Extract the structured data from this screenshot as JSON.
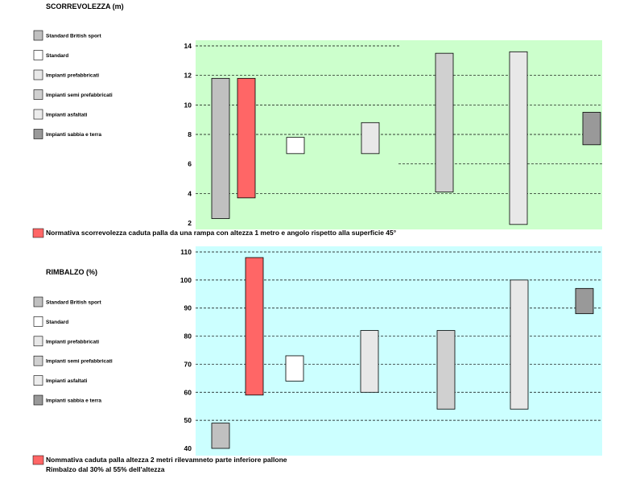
{
  "colors": {
    "panel1_bg": "#ccffcc",
    "panel2_bg": "#ccffff",
    "standard_british_sport": "#c0c0c0",
    "standard": "#ffffff",
    "prefabricated": "#e8e8e8",
    "semi_prefabricated": "#d0d0d0",
    "asphalt": "#ececec",
    "sand_earth": "#999999",
    "norm": "#ff6666"
  },
  "chart_data": [
    {
      "type": "bar",
      "title": "SCORREVOLEZZA (m)",
      "ylim": [
        2,
        14
      ],
      "yticks": [
        2,
        4,
        6,
        8,
        10,
        12,
        14
      ],
      "grid": true,
      "legend": [
        {
          "label": "Standard British sport",
          "color": "#c0c0c0"
        },
        {
          "label": "Standard",
          "color": "#ffffff"
        },
        {
          "label": "Impianti prefabbricati",
          "color": "#e8e8e8"
        },
        {
          "label": "Impianti semi prefabbricati",
          "color": "#d0d0d0"
        },
        {
          "label": "Impianti asfaltati",
          "color": "#ececec"
        },
        {
          "label": "Impianti sabbia e terra",
          "color": "#999999"
        }
      ],
      "series": [
        {
          "color": "#c0c0c0",
          "low": 2.3,
          "high": 11.8
        },
        {
          "color": "#ff6666",
          "low": 3.7,
          "high": 11.8
        },
        {
          "color": "#ffffff",
          "low": 6.7,
          "high": 7.8
        },
        {
          "color": "#e8e8e8",
          "low": 6.7,
          "high": 8.8
        },
        {
          "color": "#d0d0d0",
          "low": 4.1,
          "high": 13.5
        },
        {
          "color": "#e8e8e8",
          "low": 1.9,
          "high": 13.6
        },
        {
          "color": "#999999",
          "low": 7.3,
          "high": 9.5
        }
      ],
      "note_lines": [
        "Normativa scorrevolezza caduta palla da una rampa con altezza 1 metro e angolo rispetto alla superficie 45°"
      ]
    },
    {
      "type": "bar",
      "title": "RIMBALZO (%)",
      "ylim": [
        40,
        110
      ],
      "yticks": [
        40,
        50,
        60,
        70,
        80,
        90,
        100,
        110
      ],
      "grid": true,
      "legend": [
        {
          "label": "Standard British sport",
          "color": "#c0c0c0"
        },
        {
          "label": "Standard",
          "color": "#ffffff"
        },
        {
          "label": "Impianti prefabbricati",
          "color": "#e8e8e8"
        },
        {
          "label": "Impianti semi prefabbricati",
          "color": "#d0d0d0"
        },
        {
          "label": "Impianti asfaltati",
          "color": "#ececec"
        },
        {
          "label": "Impianti sabbia e terra",
          "color": "#999999"
        }
      ],
      "series": [
        {
          "color": "#c0c0c0",
          "low": 40,
          "high": 49
        },
        {
          "color": "#ff6666",
          "low": 59,
          "high": 108
        },
        {
          "color": "#ffffff",
          "low": 64,
          "high": 73
        },
        {
          "color": "#e8e8e8",
          "low": 60,
          "high": 82
        },
        {
          "color": "#d0d0d0",
          "low": 54,
          "high": 82
        },
        {
          "color": "#e8e8e8",
          "low": 54,
          "high": 100
        },
        {
          "color": "#999999",
          "low": 88,
          "high": 97
        }
      ],
      "note_lines": [
        "Nommativa caduta palla altezza 2 metri rilevamneto parte inferiore pallone",
        "Rimbalzo dal 30% al 55% dell'altezza"
      ]
    }
  ]
}
